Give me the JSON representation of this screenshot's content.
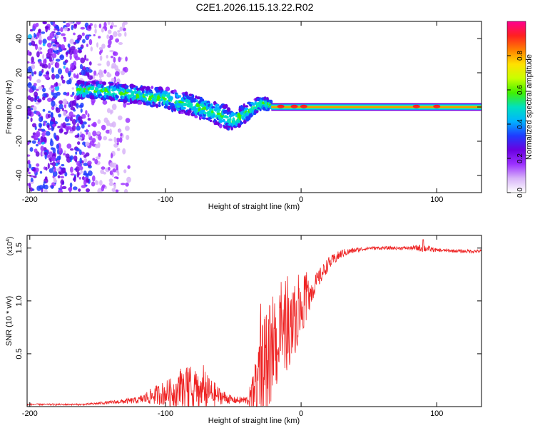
{
  "title": "C2E1.2026.115.13.22.R02",
  "chart_data": [
    {
      "type": "heatmap",
      "title": "C2E1.2026.115.13.22.R02",
      "xlabel": "Height of straight line (km)",
      "ylabel": "Frequency (Hz)",
      "xlim": [
        -202,
        133
      ],
      "ylim": [
        -50,
        50
      ],
      "xticks": [
        -200,
        -100,
        0,
        100
      ],
      "xtick_labels": [
        "-200",
        "-100",
        "0",
        "100"
      ],
      "yticks": [
        -40,
        -20,
        0,
        20,
        40
      ],
      "ytick_labels": [
        "-40",
        "-20",
        "0",
        "20",
        "40"
      ],
      "colorbar": {
        "label": "Normalized spectral amplitude",
        "range": [
          0,
          1
        ],
        "ticks": [
          0,
          0.2,
          0.4,
          0.6,
          0.8
        ],
        "tick_labels": [
          "0.0",
          "0.2",
          "0.4",
          "0.6",
          "0.8"
        ],
        "colors": [
          "#ffffff",
          "#d8b4f8",
          "#9b30ff",
          "#6a00e0",
          "#1e3cff",
          "#00b4ff",
          "#00e0c0",
          "#40f000",
          "#c8ff00",
          "#ffe000",
          "#ff8000",
          "#ff2020",
          "#ff0090"
        ]
      },
      "trace": {
        "x": [
          -160,
          -140,
          -120,
          -100,
          -80,
          -60,
          -50,
          -40,
          -30,
          -20,
          -10,
          0,
          20,
          60,
          100,
          133
        ],
        "frequency": [
          10,
          9,
          7,
          5,
          1,
          -4,
          -8,
          -3,
          2,
          1,
          0.5,
          0.5,
          0,
          0,
          0,
          0
        ],
        "spread": [
          5,
          5,
          5,
          6,
          6,
          7,
          6,
          5,
          4,
          3,
          2,
          2,
          2,
          2,
          2,
          2
        ]
      },
      "scatter_band": {
        "x_range": [
          -202,
          -127
        ],
        "frequency_range": [
          -50,
          50
        ]
      },
      "grid": false
    },
    {
      "type": "line",
      "xlabel": "Height of straight line (km)",
      "ylabel": "SNR (10 * v/v)",
      "yscale_label": "(x10",
      "yscale_exponent": "4",
      "yscale_suffix": ")",
      "xlim": [
        -202,
        133
      ],
      "ylim": [
        0,
        1.62
      ],
      "xticks": [
        -200,
        -100,
        0,
        100
      ],
      "xtick_labels": [
        "-200",
        "-100",
        "0",
        "100"
      ],
      "yticks": [
        0.5,
        1.0,
        1.5
      ],
      "ytick_labels": [
        "0.5",
        "1.0",
        "1.5"
      ],
      "series": [
        {
          "color": "#ee2222",
          "envelope": {
            "x": [
              -202,
              -160,
              -140,
              -120,
              -110,
              -100,
              -90,
              -80,
              -70,
              -60,
              -50,
              -40,
              -35,
              -30,
              -25,
              -20,
              -15,
              -10,
              -5,
              0,
              10,
              20,
              30,
              40,
              50,
              60,
              80,
              90,
              100,
              120,
              133
            ],
            "base": [
              0.02,
              0.02,
              0.04,
              0.06,
              0.1,
              0.13,
              0.14,
              0.15,
              0.14,
              0.1,
              0.06,
              0.06,
              0.1,
              0.2,
              0.4,
              0.5,
              0.6,
              0.7,
              0.8,
              0.9,
              1.15,
              1.35,
              1.45,
              1.48,
              1.5,
              1.5,
              1.5,
              1.5,
              1.48,
              1.47,
              1.47
            ],
            "amplitude": [
              0.01,
              0.01,
              0.02,
              0.04,
              0.1,
              0.15,
              0.2,
              0.25,
              0.22,
              0.1,
              0.04,
              0.05,
              0.25,
              0.7,
              0.6,
              0.45,
              0.5,
              0.45,
              0.4,
              0.3,
              0.12,
              0.08,
              0.05,
              0.03,
              0.02,
              0.02,
              0.02,
              0.05,
              0.02,
              0.02,
              0.02
            ]
          }
        }
      ],
      "grid": false
    }
  ]
}
